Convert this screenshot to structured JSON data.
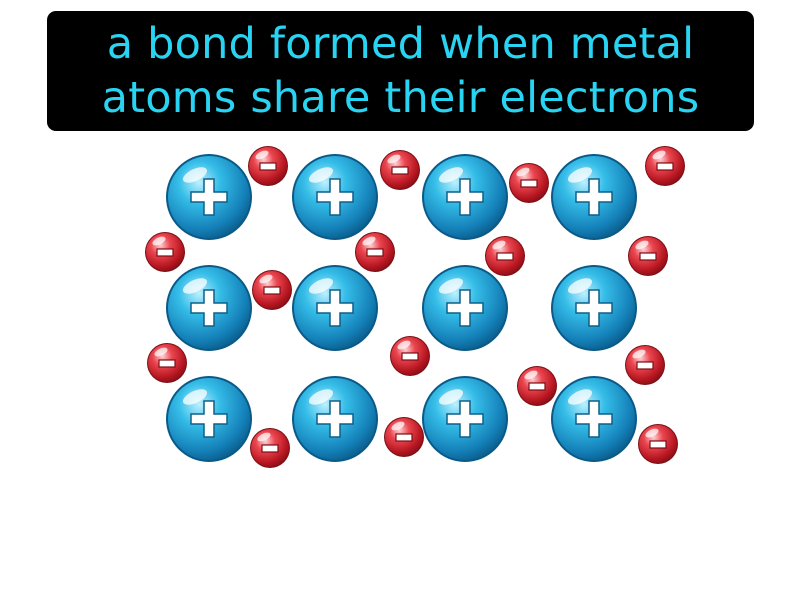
{
  "definition": {
    "lines": [
      "a bond formed when metal",
      "atoms share their electrons"
    ]
  },
  "diagram": {
    "ion_symbol": "+",
    "electron_symbol": "−",
    "ion_count": 12,
    "electron_count": 15,
    "colors": {
      "caption_background": "#000000",
      "caption_text": "#29d3f2",
      "ion": "#1f8fc4",
      "electron": "#c8202b"
    }
  }
}
